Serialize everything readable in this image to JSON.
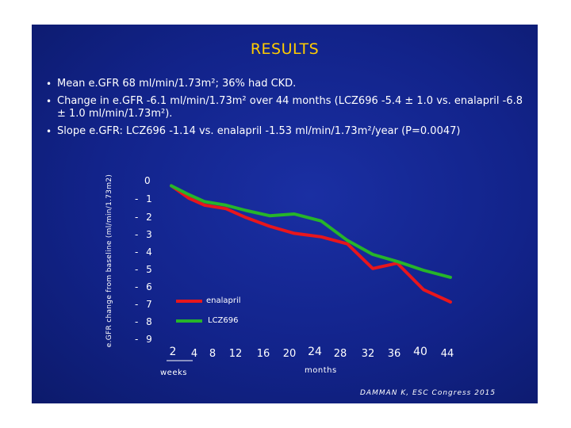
{
  "slide": {
    "title": "RESULTS",
    "bullets": [
      "Mean e.GFR 68 ml/min/1.73m²; 36% had CKD.",
      "Change in e.GFR -6.1 ml/min/1.73m² over 44 months (LCZ696 -5.4 ± 1.0 vs. enalapril -6.8 ± 1.0 ml/min/1.73m²).",
      "Slope e.GFR: LCZ696 -1.14 vs. enalapril -1.53 ml/min/1.73m²/year (P=0.0047)"
    ],
    "citation": "DAMMAN K, ESC Congress 2015"
  },
  "chart_data": {
    "type": "line",
    "title": "",
    "ylabel": "e.GFR change from baseline (ml/min/1.73m2)",
    "xlabel": "",
    "ylim": [
      -9,
      0
    ],
    "y_ticks": [
      0,
      -1,
      -2,
      -3,
      -4,
      -5,
      -6,
      -7,
      -8,
      -9
    ],
    "y_tick_labels": [
      "0",
      "- 1",
      "- 2",
      "- 3",
      "- 4",
      "- 5",
      "- 6",
      "- 7",
      "- 8",
      "- 9"
    ],
    "x_tick_labels": [
      "2",
      "4",
      "8",
      "12",
      "16",
      "20",
      "24",
      "28",
      "32",
      "36",
      "40",
      "44"
    ],
    "x_unit_labels": {
      "weeks": "weeks",
      "months": "months"
    },
    "series": [
      {
        "name": "enalapril",
        "color": "#e8161c",
        "values": [
          -0.2,
          -0.9,
          -1.3,
          -1.5,
          -2.0,
          -2.5,
          -2.9,
          -3.1,
          -3.5,
          -4.9,
          -4.6,
          -6.1,
          -6.8
        ]
      },
      {
        "name": "LCZ696",
        "color": "#26b52a",
        "values": [
          -0.2,
          -0.7,
          -1.1,
          -1.3,
          -1.6,
          -1.9,
          -1.8,
          -2.2,
          -3.3,
          -4.1,
          -4.5,
          -5.0,
          -5.4
        ]
      }
    ],
    "legend": [
      {
        "label": "enalapril",
        "color": "#e8161c"
      },
      {
        "label": "LCZ696",
        "color": "#26b52a"
      }
    ]
  }
}
